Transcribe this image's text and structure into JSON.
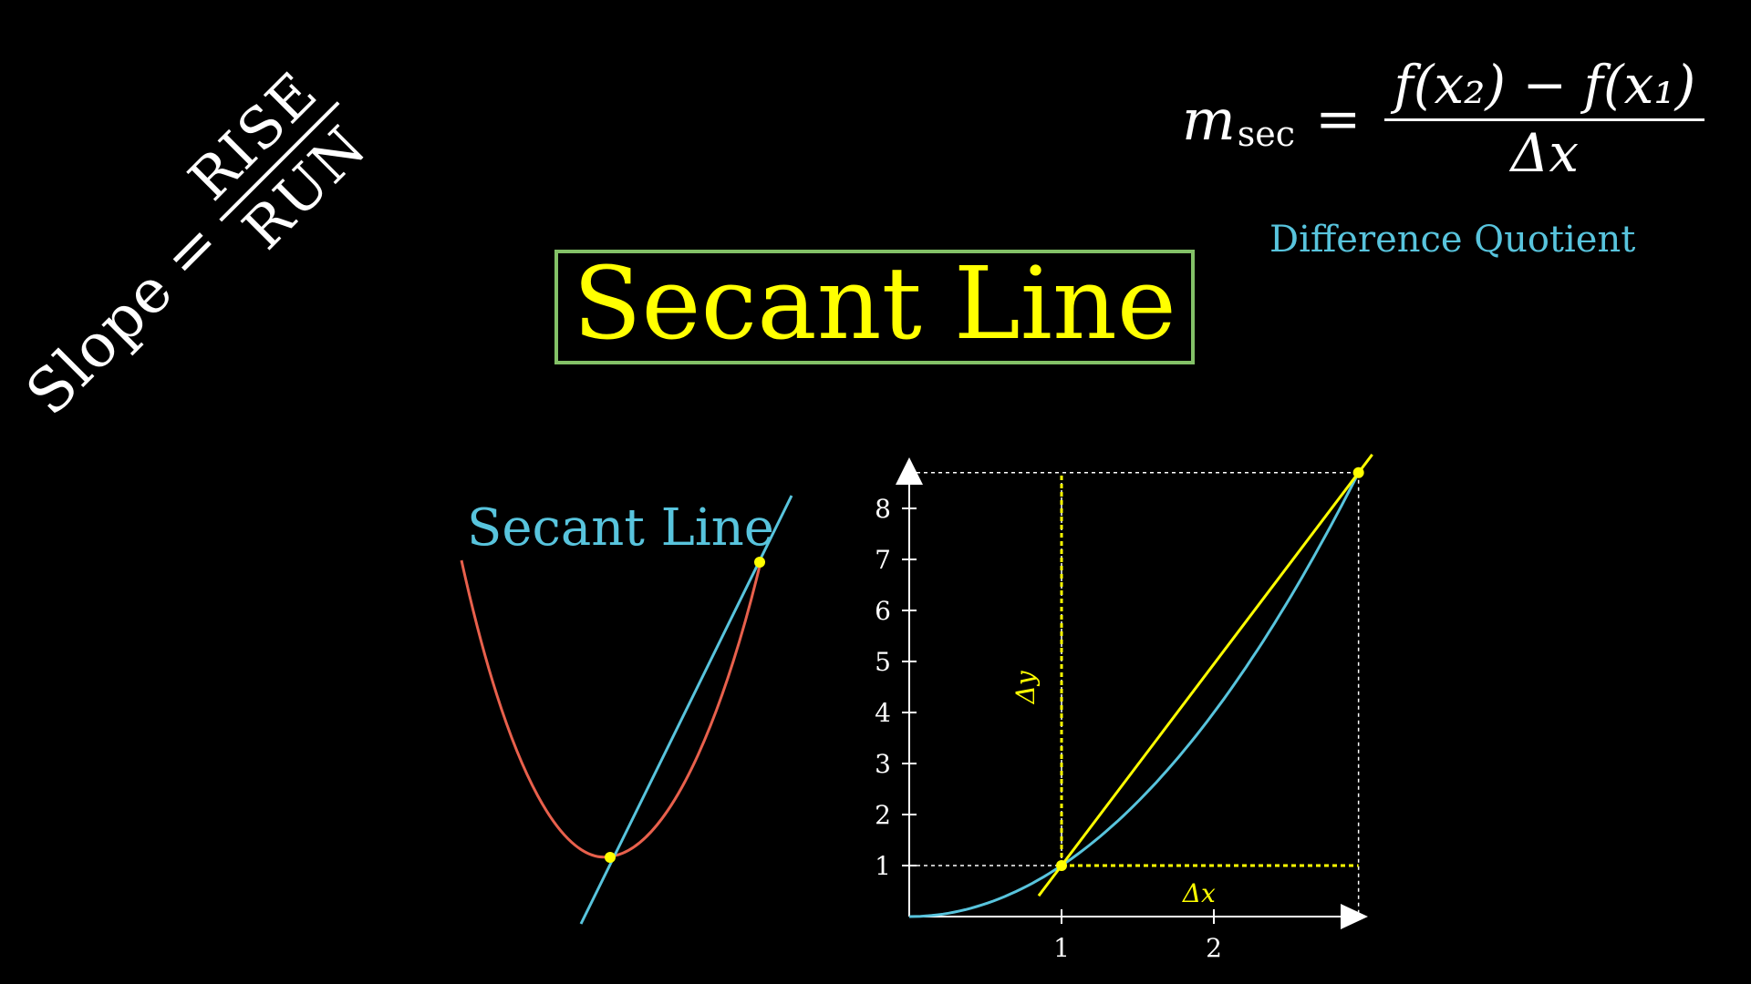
{
  "slope_formula": {
    "word": "Slope",
    "equals": "=",
    "numerator": "RISE",
    "denominator": "RUN"
  },
  "secant_formula": {
    "lhs": "m",
    "lhs_subscript": "sec",
    "equals": "=",
    "numerator": "f(x₂) − f(x₁)",
    "denominator": "Δx"
  },
  "difference_quotient_label": "Difference Quotient",
  "title": "Secant Line",
  "parabola_diagram": {
    "label": "Secant Line"
  },
  "graph": {
    "x_ticks": [
      "1",
      "2"
    ],
    "y_ticks": [
      "1",
      "2",
      "3",
      "4",
      "5",
      "6",
      "7",
      "8"
    ],
    "delta_x_label": "Δx",
    "delta_y_label": "Δy",
    "x_range": [
      0,
      2.95
    ],
    "y_range": [
      0,
      8.7
    ],
    "point1": {
      "x": 1,
      "y": 1
    },
    "point2": {
      "x": 2.95,
      "y": 8.7
    }
  },
  "colors": {
    "background": "#000000",
    "text": "#ffffff",
    "accent_yellow": "#ffff00",
    "accent_blue": "#58c4dd",
    "curve_red": "#e8604c",
    "box_green": "#83c167"
  }
}
